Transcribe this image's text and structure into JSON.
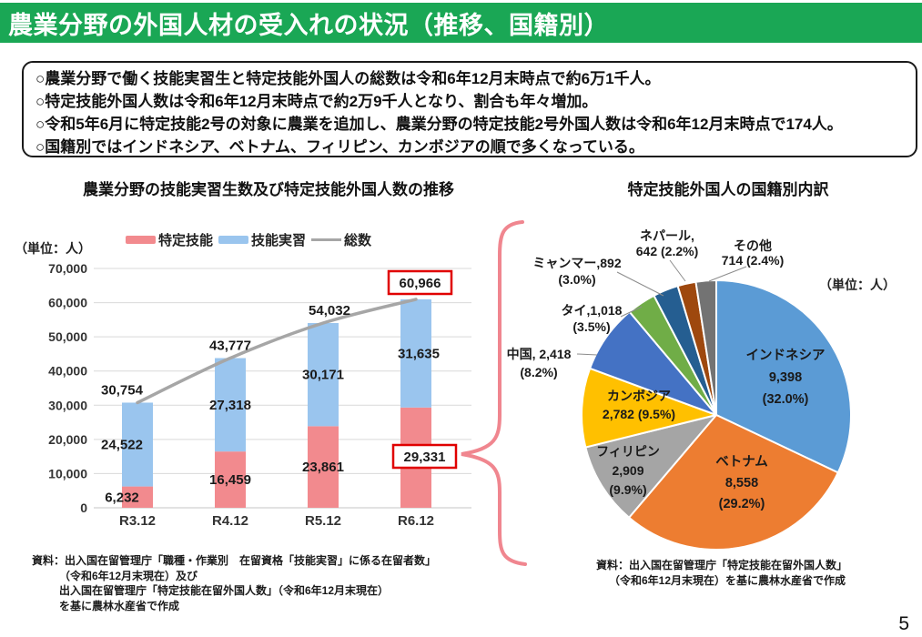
{
  "header": {
    "title": "農業分野の外国人材の受入れの状況（推移、国籍別）",
    "bg_color": "#1AA755"
  },
  "summary": {
    "lines": [
      "○農業分野で働く技能実習生と特定技能外国人の総数は令和6年12月末時点で約6万1千人。",
      "○特定技能外国人数は令和6年12月末時点で約2万9千人となり、割合も年々増加。",
      "○令和5年6月に特定技能2号の対象に農業を追加し、農業分野の特定技能2号外国人数は令和6年12月末時点で174人。",
      "○国籍別ではインドネシア、ベトナム、フィリピン、カンボジアの順で多くなっている。"
    ]
  },
  "chart_data": {
    "bar": {
      "type": "bar",
      "title": "農業分野の技能実習生数及び特定技能外国人数の推移",
      "unit_label": "（単位：人）",
      "categories": [
        "R3.12",
        "R4.12",
        "R5.12",
        "R6.12"
      ],
      "series": [
        {
          "name": "特定技能",
          "type": "bar",
          "color": "#F28A8E",
          "values": [
            6232,
            16459,
            23861,
            29331
          ]
        },
        {
          "name": "技能実習",
          "type": "bar",
          "color": "#9AC5EE",
          "values": [
            24522,
            27318,
            30171,
            31635
          ]
        },
        {
          "name": "総数",
          "type": "line",
          "color": "#A6A6A6",
          "values": [
            30754,
            43777,
            54032,
            60966
          ]
        }
      ],
      "ylim": [
        0,
        70000
      ],
      "ytick_step": 10000,
      "grid": true,
      "legend_position": "top",
      "highlight_color": "#E00000",
      "highlighted_values": [
        "60,966",
        "29,331"
      ]
    },
    "pie": {
      "type": "pie",
      "title": "特定技能外国人の国籍別内訳",
      "unit_label": "（単位：人）",
      "slices": [
        {
          "label": "インドネシア",
          "value": 9398,
          "pct": "32.0%",
          "color": "#5B9BD5"
        },
        {
          "label": "ベトナム",
          "value": 8558,
          "pct": "29.2%",
          "color": "#ED7D31"
        },
        {
          "label": "フィリピン",
          "value": 2909,
          "pct": "9.9%",
          "color": "#A5A5A5"
        },
        {
          "label": "カンボジア",
          "value": 2782,
          "pct": "9.5%",
          "color": "#FFC000"
        },
        {
          "label": "中国",
          "value": 2418,
          "pct": "8.2%",
          "color": "#4472C4"
        },
        {
          "label": "タイ",
          "value": 1018,
          "pct": "3.5%",
          "color": "#70AD47"
        },
        {
          "label": "ミャンマー",
          "value": 892,
          "pct": "3.0%",
          "color": "#255E91"
        },
        {
          "label": "ネパール",
          "value": 642,
          "pct": "2.2%",
          "color": "#9E480E"
        },
        {
          "label": "その他",
          "value": 714,
          "pct": "2.4%",
          "color": "#737373"
        }
      ]
    }
  },
  "sources": {
    "left": {
      "lines": [
        "資料：出入国在留管理庁「職種・作業別　在留資格「技能実習」に係る在留者数」",
        "（令和6年12月末現在）及び",
        "出入国在留管理庁「特定技能在留外国人数」（令和6年12月末現在）",
        "を基に農林水産省で作成"
      ]
    },
    "right": {
      "lines": [
        "資料：出入国在留管理庁「特定技能在留外国人数」",
        "（令和6年12月末現在）を基に農林水産省で作成"
      ]
    }
  },
  "accent": {
    "brace_color": "#F0868F",
    "grid_color": "#D9D9D9"
  },
  "page_number": "5"
}
